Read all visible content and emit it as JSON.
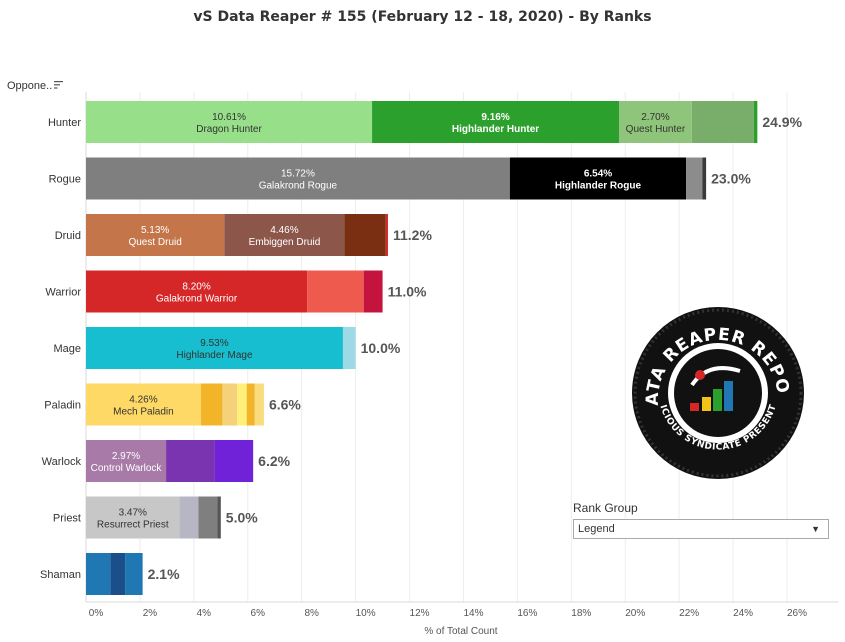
{
  "title": "vS Data Reaper #  155 (February 12 - 18, 2020) - By Ranks",
  "sort_label": "Oppone..",
  "sort_icon": "sort-descending-icon",
  "legend": {
    "title": "Rank Group",
    "selected": "Legend",
    "arrow_icon": "dropdown-arrow-icon"
  },
  "logo": {
    "icon": "data-reaper-report-logo",
    "text_top": "DATA REAPER REPORT",
    "text_bottom": "VICIOUS SYNDICATE PRESENTS"
  },
  "chart_data": {
    "type": "bar",
    "orientation": "horizontal-stacked",
    "xlabel": "% of Total Count",
    "xlim": [
      0,
      27
    ],
    "xticks": [
      "0%",
      "2%",
      "4%",
      "6%",
      "8%",
      "10%",
      "12%",
      "14%",
      "16%",
      "18%",
      "20%",
      "22%",
      "24%",
      "26%"
    ],
    "categories": [
      "Hunter",
      "Rogue",
      "Druid",
      "Warrior",
      "Mage",
      "Paladin",
      "Warlock",
      "Priest",
      "Shaman"
    ],
    "totals": [
      "24.9%",
      "23.0%",
      "11.2%",
      "11.0%",
      "10.0%",
      "6.6%",
      "6.2%",
      "5.0%",
      "2.1%"
    ],
    "rows": [
      {
        "class": "Hunter",
        "total": 24.9,
        "segments": [
          {
            "value": 10.61,
            "pct": "10.61%",
            "name": "Dragon Hunter",
            "color": "#98df8a",
            "text_color": "#333333",
            "bold": false
          },
          {
            "value": 9.16,
            "pct": "9.16%",
            "name": "Highlander Hunter",
            "color": "#2ca02c",
            "text_color": "#ffffff",
            "bold": true
          },
          {
            "value": 2.7,
            "pct": "2.70%",
            "name": "Quest Hunter",
            "color": "#8fc57a",
            "text_color": "#333333",
            "bold": false
          },
          {
            "value": 2.3,
            "color": "#78ad6a"
          },
          {
            "value": 0.13,
            "color": "#2ca02c"
          }
        ]
      },
      {
        "class": "Rogue",
        "total": 23.0,
        "segments": [
          {
            "value": 15.72,
            "pct": "15.72%",
            "name": "Galakrond Rogue",
            "color": "#7f7f7f",
            "text_color": "#ffffff",
            "bold": false
          },
          {
            "value": 6.54,
            "pct": "6.54%",
            "name": "Highlander Rogue",
            "color": "#000000",
            "text_color": "#ffffff",
            "bold": true
          },
          {
            "value": 0.6,
            "color": "#8c8c8c"
          },
          {
            "value": 0.14,
            "color": "#3a3a3a"
          }
        ]
      },
      {
        "class": "Druid",
        "total": 11.2,
        "segments": [
          {
            "value": 5.13,
            "pct": "5.13%",
            "name": "Quest Druid",
            "color": "#c4764a",
            "text_color": "#ffffff",
            "bold": false
          },
          {
            "value": 4.46,
            "pct": "4.46%",
            "name": "Embiggen Druid",
            "color": "#8c564b",
            "text_color": "#ffffff",
            "bold": false
          },
          {
            "value": 1.53,
            "color": "#7b2f12"
          },
          {
            "value": 0.08,
            "color": "#d62728"
          }
        ]
      },
      {
        "class": "Warrior",
        "total": 11.0,
        "segments": [
          {
            "value": 8.2,
            "pct": "8.20%",
            "name": "Galakrond Warrior",
            "color": "#d62728",
            "text_color": "#ffffff",
            "bold": false
          },
          {
            "value": 2.1,
            "color": "#ef5a4f"
          },
          {
            "value": 0.7,
            "color": "#c4143e"
          }
        ]
      },
      {
        "class": "Mage",
        "total": 10.0,
        "segments": [
          {
            "value": 9.53,
            "pct": "9.53%",
            "name": "Highlander Mage",
            "color": "#17becf",
            "text_color": "#333333",
            "bold": false
          },
          {
            "value": 0.47,
            "color": "#9edae5"
          }
        ]
      },
      {
        "class": "Paladin",
        "total": 6.6,
        "segments": [
          {
            "value": 4.26,
            "pct": "4.26%",
            "name": "Mech Paladin",
            "color": "#ffd966",
            "text_color": "#333333",
            "bold": false
          },
          {
            "value": 0.8,
            "color": "#f2b52a"
          },
          {
            "value": 0.55,
            "color": "#f5d27a"
          },
          {
            "value": 0.35,
            "color": "#fff07a"
          },
          {
            "value": 0.3,
            "color": "#f2b52a"
          },
          {
            "value": 0.34,
            "color": "#f9dc7e"
          }
        ]
      },
      {
        "class": "Warlock",
        "total": 6.2,
        "segments": [
          {
            "value": 2.97,
            "pct": "2.97%",
            "name": "Control Warlock",
            "color": "#a87aa8",
            "text_color": "#ffffff",
            "bold": false
          },
          {
            "value": 1.8,
            "color": "#7b34b0"
          },
          {
            "value": 1.43,
            "color": "#6f22d8"
          }
        ]
      },
      {
        "class": "Priest",
        "total": 5.0,
        "segments": [
          {
            "value": 3.47,
            "pct": "3.47%",
            "name": "Resurrect Priest",
            "color": "#c7c7c7",
            "text_color": "#333333",
            "bold": false
          },
          {
            "value": 0.7,
            "color": "#b6b6c4"
          },
          {
            "value": 0.7,
            "color": "#7f7f7f"
          },
          {
            "value": 0.13,
            "color": "#555555"
          }
        ]
      },
      {
        "class": "Shaman",
        "total": 2.1,
        "segments": [
          {
            "value": 0.9,
            "color": "#1f77b4"
          },
          {
            "value": 0.55,
            "color": "#1b4f8a"
          },
          {
            "value": 0.65,
            "color": "#1f77b4"
          }
        ]
      }
    ]
  }
}
